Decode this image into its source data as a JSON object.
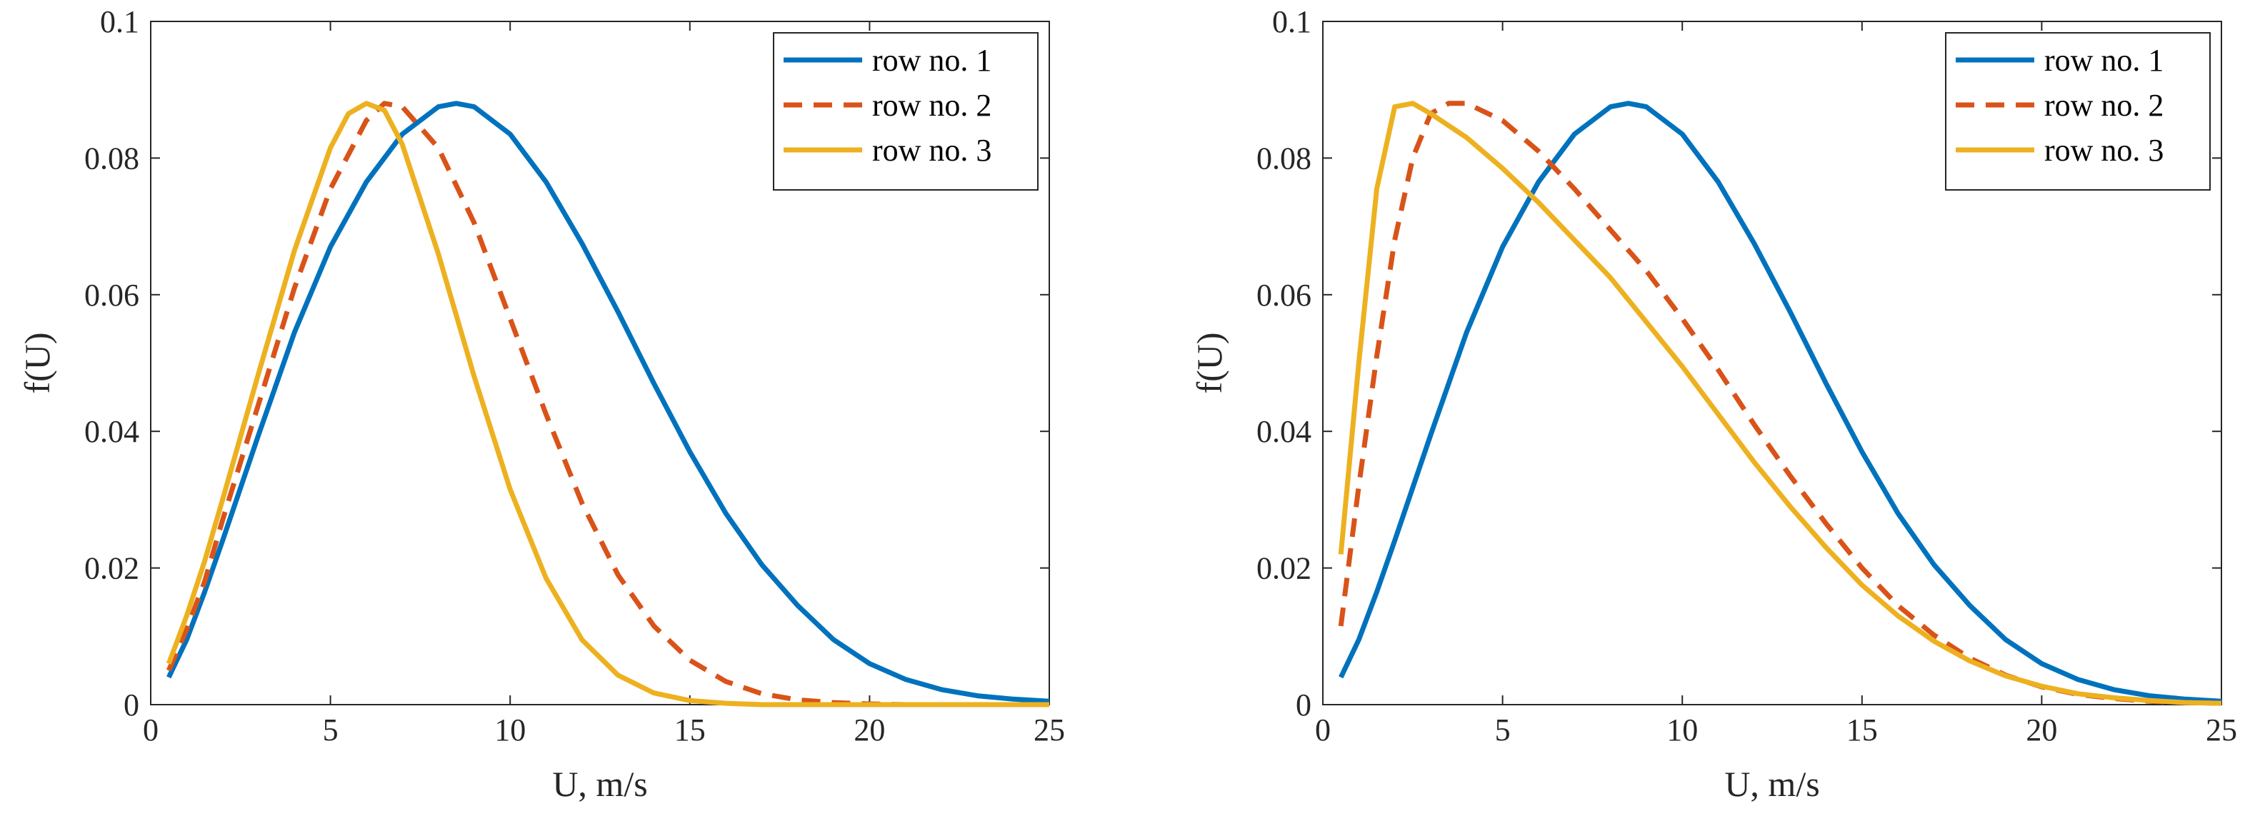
{
  "chart_data": [
    {
      "type": "line",
      "title": "",
      "xlabel": "U, m/s",
      "ylabel": "f(U)",
      "xlim": [
        0,
        25
      ],
      "ylim": [
        0,
        0.1
      ],
      "xticks": [
        "0",
        "5",
        "10",
        "15",
        "20",
        "25"
      ],
      "yticks": [
        "0",
        "0.02",
        "0.04",
        "0.06",
        "0.08",
        "0.1"
      ],
      "grid": false,
      "legend_position": "top-right",
      "series": [
        {
          "name": "row no. 1",
          "color": "#0072BD",
          "dash": "solid",
          "x": [
            0.5,
            1,
            1.5,
            2,
            3,
            4,
            5,
            6,
            7,
            8,
            8.5,
            9,
            10,
            11,
            12,
            13,
            14,
            15,
            16,
            17,
            18,
            19,
            20,
            21,
            22,
            23,
            24,
            25
          ],
          "y": [
            0.004,
            0.0095,
            0.0165,
            0.024,
            0.0395,
            0.0545,
            0.067,
            0.0765,
            0.0835,
            0.0875,
            0.088,
            0.0875,
            0.0835,
            0.0765,
            0.0675,
            0.0575,
            0.047,
            0.037,
            0.028,
            0.0205,
            0.0145,
            0.0095,
            0.006,
            0.0037,
            0.0022,
            0.0013,
            0.0008,
            0.0005
          ]
        },
        {
          "name": "row no. 2",
          "color": "#D95319",
          "dash": "dashed",
          "x": [
            0.5,
            1,
            1.5,
            2,
            3,
            4,
            5,
            6,
            6.5,
            7,
            8,
            9,
            10,
            11,
            12,
            13,
            14,
            15,
            16,
            17,
            18,
            19,
            20,
            21,
            22,
            23,
            24,
            25
          ],
          "y": [
            0.005,
            0.011,
            0.018,
            0.027,
            0.044,
            0.061,
            0.0755,
            0.0855,
            0.088,
            0.0875,
            0.0815,
            0.0705,
            0.0565,
            0.0425,
            0.0295,
            0.019,
            0.0115,
            0.0065,
            0.0034,
            0.0016,
            0.0007,
            0.0003,
            0.0001,
            0,
            0,
            0,
            0,
            0
          ]
        },
        {
          "name": "row no. 3",
          "color": "#EDB120",
          "dash": "solid",
          "x": [
            0.5,
            1,
            1.5,
            2,
            3,
            4,
            5,
            5.5,
            6,
            6.5,
            7,
            8,
            9,
            10,
            11,
            12,
            13,
            14,
            15,
            16,
            17,
            18,
            19,
            20,
            21,
            22,
            23,
            24,
            25
          ],
          "y": [
            0.006,
            0.013,
            0.021,
            0.03,
            0.0485,
            0.0665,
            0.0815,
            0.0865,
            0.088,
            0.087,
            0.082,
            0.066,
            0.048,
            0.0315,
            0.0185,
            0.0095,
            0.0043,
            0.0017,
            0.0006,
            0.0002,
            0,
            0,
            0,
            0,
            0,
            0,
            0,
            0,
            0
          ]
        }
      ]
    },
    {
      "type": "line",
      "title": "",
      "xlabel": "U, m/s",
      "ylabel": "f(U)",
      "xlim": [
        0,
        25
      ],
      "ylim": [
        0,
        0.1
      ],
      "xticks": [
        "0",
        "5",
        "10",
        "15",
        "20",
        "25"
      ],
      "yticks": [
        "0",
        "0.02",
        "0.04",
        "0.06",
        "0.08",
        "0.1"
      ],
      "grid": false,
      "legend_position": "top-right",
      "series": [
        {
          "name": "row no. 1",
          "color": "#0072BD",
          "dash": "solid",
          "x": [
            0.5,
            1,
            1.5,
            2,
            3,
            4,
            5,
            6,
            7,
            8,
            8.5,
            9,
            10,
            11,
            12,
            13,
            14,
            15,
            16,
            17,
            18,
            19,
            20,
            21,
            22,
            23,
            24,
            25
          ],
          "y": [
            0.004,
            0.0095,
            0.0165,
            0.024,
            0.0395,
            0.0545,
            0.067,
            0.0765,
            0.0835,
            0.0875,
            0.088,
            0.0875,
            0.0835,
            0.0765,
            0.0675,
            0.0575,
            0.047,
            0.037,
            0.028,
            0.0205,
            0.0145,
            0.0095,
            0.006,
            0.0037,
            0.0022,
            0.0013,
            0.0008,
            0.0005
          ]
        },
        {
          "name": "row no. 2",
          "color": "#D95319",
          "dash": "dashed",
          "x": [
            0.5,
            1,
            1.5,
            2,
            2.5,
            3,
            3.5,
            4,
            5,
            6,
            7,
            8,
            9,
            10,
            11,
            12,
            13,
            14,
            15,
            16,
            17,
            18,
            19,
            20,
            21,
            22,
            23,
            24,
            25
          ],
          "y": [
            0.0115,
            0.032,
            0.051,
            0.068,
            0.08,
            0.0865,
            0.088,
            0.088,
            0.0855,
            0.081,
            0.0755,
            0.0695,
            0.0635,
            0.0565,
            0.049,
            0.041,
            0.0335,
            0.0265,
            0.02,
            0.0145,
            0.0102,
            0.0068,
            0.0043,
            0.0026,
            0.0015,
            0.0009,
            0.0005,
            0.0003,
            0.0002
          ]
        },
        {
          "name": "row no. 3",
          "color": "#EDB120",
          "dash": "solid",
          "x": [
            0.5,
            1,
            1.5,
            2,
            2.5,
            3,
            4,
            5,
            6,
            7,
            8,
            9,
            10,
            11,
            12,
            13,
            14,
            15,
            16,
            17,
            18,
            19,
            20,
            21,
            22,
            23,
            24,
            25
          ],
          "y": [
            0.022,
            0.05,
            0.0755,
            0.0875,
            0.088,
            0.0865,
            0.083,
            0.0785,
            0.0735,
            0.068,
            0.0625,
            0.056,
            0.0495,
            0.0425,
            0.0355,
            0.029,
            0.023,
            0.0175,
            0.013,
            0.0093,
            0.0064,
            0.0042,
            0.0027,
            0.0016,
            0.001,
            0.0006,
            0.0003,
            0.0002
          ]
        }
      ]
    }
  ]
}
